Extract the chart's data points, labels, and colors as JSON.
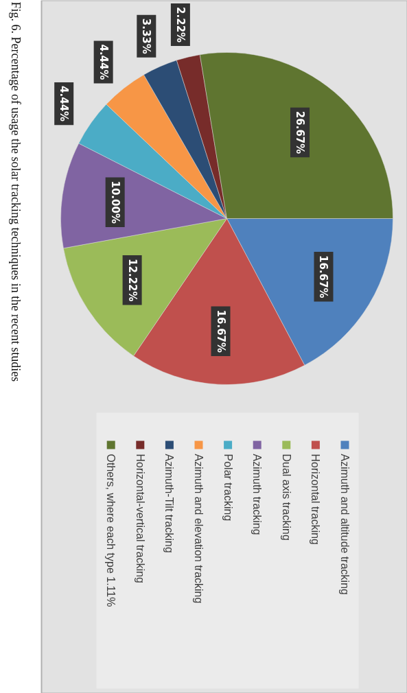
{
  "chart_data": {
    "type": "pie",
    "title": "Fig. 6. Percentage of usage the solar tracking techniques in the recent studies",
    "categories": [
      "Azimuth and altitude tracking",
      "Horizontal tracking",
      "Dual axis tracking",
      "Azimuth tracking",
      "Polar tracking",
      "Azimuth and elevation tracking",
      "Azimuth-Tilt tracking",
      "Horizontal-vertical tracking",
      "Others, where each type  1.11%"
    ],
    "values": [
      16.67,
      16.67,
      12.22,
      10.0,
      4.44,
      4.44,
      3.33,
      2.22,
      26.67
    ],
    "value_labels": [
      "16.67%",
      "16.67%",
      "12.22%",
      "10.00%",
      "4.44%",
      "4.44%",
      "3.33%",
      "2.22%",
      "26.67%"
    ],
    "colors": [
      "#4f81bd",
      "#c0504d",
      "#9bbb59",
      "#8064a2",
      "#4bacc6",
      "#f79646",
      "#2c4d75",
      "#772c2a",
      "#5f7530"
    ],
    "legend": "bottom"
  }
}
